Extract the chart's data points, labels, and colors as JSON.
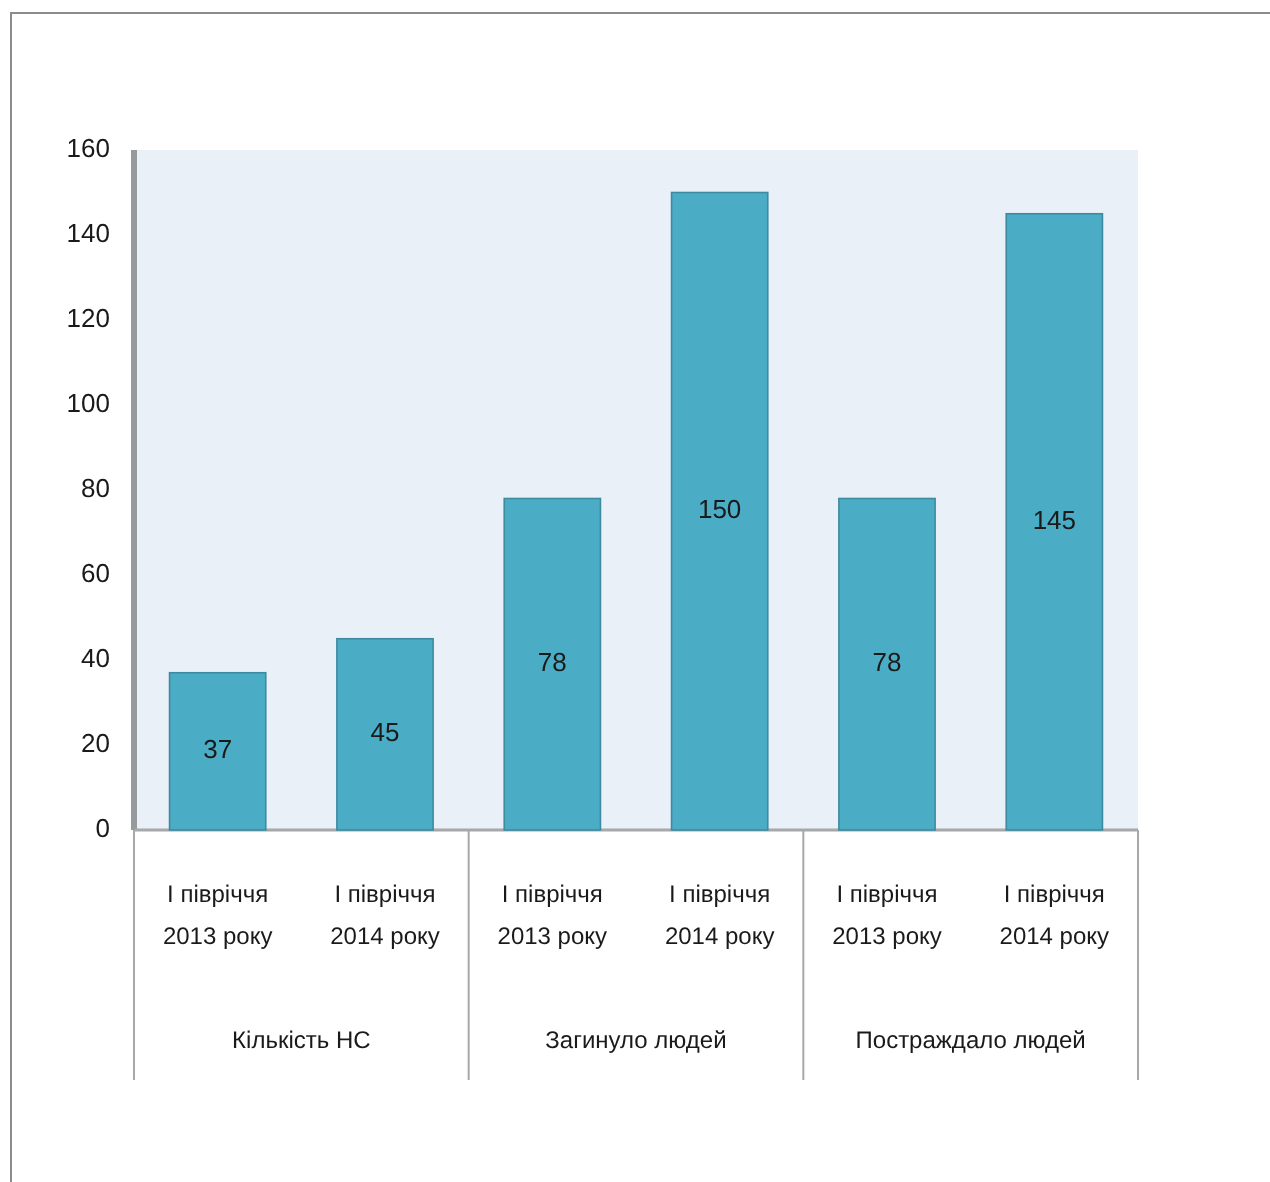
{
  "chart_data": {
    "type": "bar",
    "categories": [
      "І півріччя 2013 року",
      "І півріччя 2014 року",
      "І півріччя 2013 року",
      "І півріччя 2014 року",
      "І півріччя 2013 року",
      "І півріччя 2014 року"
    ],
    "values": [
      37,
      45,
      78,
      150,
      78,
      145
    ],
    "color": "#4bacc6",
    "ylim": [
      0,
      160
    ],
    "yticks": [
      0,
      20,
      40,
      60,
      80,
      100,
      120,
      140,
      160
    ],
    "data_labels": true,
    "annotations": [
      "Кількість НС",
      "Загинуло людей",
      "Постраждало людей"
    ]
  }
}
